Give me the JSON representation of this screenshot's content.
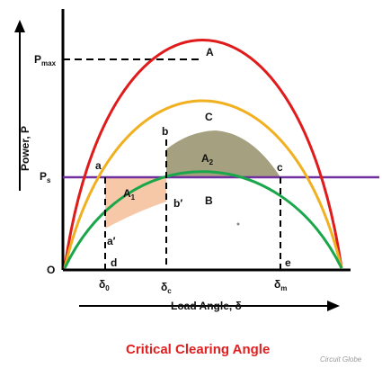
{
  "diagram": {
    "title": "Critical Clearing Angle",
    "watermark": "Circuit Globe",
    "y_axis_label": "Power, P",
    "x_axis_label": "Load Angle, δ",
    "origin_label": "O",
    "pmax": {
      "main": "P",
      "sub": "max"
    },
    "ps": {
      "main": "P",
      "sub": "s"
    },
    "delta0": {
      "main": "δ",
      "sub": "0"
    },
    "deltac": {
      "main": "δ",
      "sub": "c"
    },
    "deltam": {
      "main": "δ",
      "sub": "m"
    },
    "area1": {
      "main": "A",
      "sub": "1"
    },
    "area2": {
      "main": "A",
      "sub": "2"
    },
    "points": {
      "A": "A",
      "B": "B",
      "C": "C",
      "a": "a",
      "b": "b",
      "c": "c",
      "d": "d",
      "e": "e",
      "a_prime": "a′",
      "b_prime": "b′"
    },
    "colors": {
      "pre_fault_curve": "#e01b1b",
      "post_fault_curve": "#f0b020",
      "during_fault_curve": "#1aa64a",
      "ps_line": "#7030a0",
      "area1_fill": "#f7c8a8",
      "area2_fill": "#a5a07f",
      "title": "#e02020"
    }
  }
}
